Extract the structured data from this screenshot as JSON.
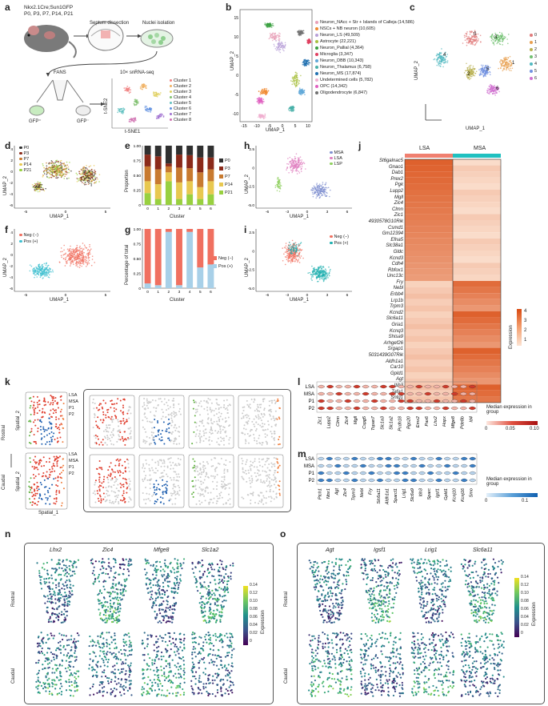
{
  "panel_labels": [
    "a",
    "b",
    "c",
    "d",
    "e",
    "f",
    "g",
    "h",
    "i",
    "j",
    "k",
    "l",
    "m",
    "n",
    "o"
  ],
  "a": {
    "mouse_text": [
      "Nkx2.1Cre;Sun1GFP",
      "P0, P3, P7, P14, P21"
    ],
    "steps": [
      "Septum dissection",
      "Nuclei isolation"
    ],
    "fans": "FANS",
    "gfp_pos": "GFP⁺",
    "gfp_neg": "GFP⁻",
    "seq": "10× snRNA-seq",
    "tsne_x": "t-SNE1",
    "tsne_y": "t-SNE2",
    "clusters": [
      "Cluster 1",
      "Cluster 2",
      "Cluster 3",
      "Cluster 4",
      "Cluster 5",
      "Cluster 6",
      "Cluster 7",
      "Cluster 8"
    ]
  },
  "b": {
    "xlabel": "UMAP_1",
    "ylabel": "UMAP_2",
    "xticks": [
      "-15",
      "-10",
      "-5",
      "0",
      "5",
      "10"
    ],
    "yticks": [
      "-10",
      "-5",
      "0",
      "5",
      "10",
      "15"
    ],
    "legend": [
      {
        "label": "Neuron_NAcc + Str + Islands of Calleja (14,586)",
        "color": "#e8a0b8"
      },
      {
        "label": "NSCs + NB neuron (10,605)",
        "color": "#f08a30"
      },
      {
        "label": "Neuron_LS (49,509)",
        "color": "#b8a0d8"
      },
      {
        "label": "Astrocyte (22,221)",
        "color": "#a8c040"
      },
      {
        "label": "Neuron_Pallial (4,364)",
        "color": "#3aa040"
      },
      {
        "label": "Microglia (3,347)",
        "color": "#e04060"
      },
      {
        "label": "Neuron_DBB (10,343)",
        "color": "#60a8d8"
      },
      {
        "label": "Neuron_Thalamus (6,758)",
        "color": "#48b0a8"
      },
      {
        "label": "Neuron_MS (17,874)",
        "color": "#2070b0"
      },
      {
        "label": "Undetermined cells (5,782)",
        "color": "#f0b0d0"
      },
      {
        "label": "OPC (14,342)",
        "color": "#e060c0"
      },
      {
        "label": "Oligodendrocyte (6,847)",
        "color": "#707070"
      }
    ]
  },
  "c": {
    "xlabel": "UMAP_1",
    "ylabel": "UMAP_2",
    "legend": [
      {
        "label": "0",
        "color": "#e07a7a"
      },
      {
        "label": "1",
        "color": "#e8a050"
      },
      {
        "label": "2",
        "color": "#b8b050"
      },
      {
        "label": "3",
        "color": "#70c070"
      },
      {
        "label": "4",
        "color": "#50b8c0"
      },
      {
        "label": "5",
        "color": "#7090e0"
      },
      {
        "label": "6",
        "color": "#d070d0"
      }
    ],
    "cluster_numbers": [
      "0",
      "1",
      "2",
      "3",
      "4",
      "5",
      "6"
    ]
  },
  "d": {
    "xlabel": "UMAP_1",
    "ylabel": "UMAP_2",
    "xticks": [
      "-5",
      "0",
      "5"
    ],
    "yticks": [
      "-6",
      "-4",
      "-2",
      "0",
      "2",
      "4"
    ],
    "legend": [
      {
        "label": "P0",
        "color": "#303030"
      },
      {
        "label": "P3",
        "color": "#8b2a1a"
      },
      {
        "label": "P7",
        "color": "#c87a30"
      },
      {
        "label": "P14",
        "color": "#e8c850"
      },
      {
        "label": "P21",
        "color": "#98d040"
      }
    ]
  },
  "e": {
    "xlabel": "Cluster",
    "ylabel": "Proportion",
    "yticks": [
      "0",
      "0.25",
      "0.50",
      "0.75",
      "1.00"
    ]
  },
  "f": {
    "xlabel": "UMAP_1",
    "ylabel": "UMAP_2",
    "xticks": [
      "-5",
      "0",
      "5"
    ],
    "yticks": [
      "-6",
      "-4",
      "-2",
      "0",
      "2",
      "4"
    ],
    "legend": [
      {
        "label": "Neg (−)",
        "color": "#f07060"
      },
      {
        "label": "Pos (+)",
        "color": "#40c0d0"
      }
    ]
  },
  "g": {
    "xlabel": "Cluster",
    "ylabel": "Percentage of total",
    "yticks": [
      "0",
      "0.25",
      "0.50",
      "0.75",
      "1.00"
    ],
    "legend": [
      {
        "label": "Neg (−)",
        "color": "#f07060"
      },
      {
        "label": "Pos (+)",
        "color": "#a8d0e8"
      }
    ]
  },
  "h": {
    "xlabel": "UMAP_1",
    "ylabel": "UMAP_2",
    "xticks": [
      "-6",
      "-3",
      "0",
      "3",
      "6"
    ],
    "yticks": [
      "-5.0",
      "-2.5",
      "0",
      "2.5"
    ],
    "legend": [
      {
        "label": "MSA",
        "color": "#8090d0"
      },
      {
        "label": "LSA",
        "color": "#e080c0"
      },
      {
        "label": "LSP",
        "color": "#90d060"
      }
    ]
  },
  "i": {
    "xlabel": "UMAP_1",
    "ylabel": "UMAP_2",
    "xticks": [
      "-6",
      "-3",
      "0",
      "3",
      "6"
    ],
    "yticks": [
      "-5.0",
      "-2.5",
      "0",
      "2.5"
    ],
    "legend": [
      {
        "label": "Neg (−)",
        "color": "#f07060"
      },
      {
        "label": "Pos (+)",
        "color": "#20b0b0"
      }
    ]
  },
  "j": {
    "col_labels": [
      "LSA",
      "MSA"
    ],
    "col_colors": [
      "#f08070",
      "#20c0c0"
    ],
    "genes": [
      "St6galnac5",
      "Gnao1",
      "Dab1",
      "Prex2",
      "Pgk",
      "Lupp2",
      "Mgll",
      "Zic4",
      "Clmn",
      "Zic1",
      "4930578G10Rik",
      "Csmd1",
      "Gm12394",
      "Efna5",
      "Slc38a1",
      "Gldc",
      "Kcnd3",
      "Cdh4",
      "Rbfox1",
      "Unc13c",
      "Fry",
      "Nebl",
      "Erbb4",
      "Lrp1b",
      "Trpm3",
      "Kcnd2",
      "Slc6a11",
      "Gria1",
      "Kcnq3",
      "Shisa9",
      "Arhgef26",
      "Srgap1",
      "5031439G07Rik",
      "Aldh1a1",
      "Car10",
      "Gpld1",
      "Agt",
      "Itih3",
      "Tafa1",
      "Sntg1"
    ],
    "legend_title": "Expression",
    "legend_ticks": [
      "4",
      "3",
      "2",
      "1"
    ]
  },
  "k": {
    "rostral": "Rostral",
    "caudal": "Caudal",
    "xlabel": "Spatial_1",
    "ylabel": "Spatial_2",
    "legend": [
      {
        "label": "LSA",
        "color": "#e04030"
      },
      {
        "label": "MSA",
        "color": "#2060b0"
      },
      {
        "label": "P1",
        "color": "#60b040"
      },
      {
        "label": "P2",
        "color": "#f08040"
      }
    ]
  },
  "l": {
    "rows": [
      "LSA",
      "MSA",
      "P1",
      "P2"
    ],
    "genes": [
      "Zic1",
      "Lupp2",
      "Clmn",
      "Zic4",
      "Mgll",
      "Cspg5",
      "Tspan7",
      "Slc1a3",
      "Slc1a2",
      "Pcdh18",
      "Rgs20",
      "Emx2",
      "Pax6",
      "Lhx2",
      "Hopx",
      "Mfge8",
      "Pde8b",
      "Id4"
    ],
    "legend_title": "Median expression in group",
    "legend_ticks": [
      "0",
      "0.05",
      "0.10"
    ]
  },
  "m": {
    "rows": [
      "LSA",
      "MSA",
      "P1",
      "P2"
    ],
    "genes": [
      "Ptch1",
      "Ntsr1",
      "Agt",
      "Zic4",
      "Trpm3",
      "Nebl",
      "Fry",
      "Slc6a11",
      "Aldh1a1",
      "Sparcl1",
      "Lrig1",
      "Slc6a9",
      "Itih3",
      "Sparc",
      "Igsf1",
      "Gpld1",
      "Kcnj10",
      "Kcnj16",
      "Smo"
    ],
    "legend_title": "Median expression in group",
    "legend_ticks": [
      "0",
      "0.1"
    ]
  },
  "n": {
    "genes": [
      "Lhx2",
      "Zic4",
      "Mfge8",
      "Slc1a2"
    ],
    "rostral": "Rostral",
    "caudal": "Caudal",
    "legend_title": "Expression",
    "legend_ticks": [
      "0.14",
      "0.12",
      "0.10",
      "0.08",
      "0.06",
      "0.04",
      "0.02",
      "0"
    ]
  },
  "o": {
    "genes": [
      "Agt",
      "Igsf1",
      "Lrig1",
      "Slc6a11"
    ],
    "rostral": "Rostral",
    "caudal": "Caudal",
    "legend_title": "Expression",
    "legend_ticks": [
      "0.14",
      "0.12",
      "0.10",
      "0.08",
      "0.06",
      "0.04",
      "0.02",
      "0"
    ]
  },
  "chart_data": [
    {
      "type": "bar",
      "panel": "e",
      "stacked": true,
      "categories": [
        "0",
        "1",
        "2",
        "3",
        "4",
        "5",
        "6"
      ],
      "series": [
        {
          "name": "P21",
          "values": [
            0.2,
            0.1,
            0.4,
            0.1,
            0.18,
            0.1,
            0.18
          ],
          "color": "#98d040"
        },
        {
          "name": "P14",
          "values": [
            0.2,
            0.25,
            0.15,
            0.28,
            0.22,
            0.2,
            0.22
          ],
          "color": "#e8c850"
        },
        {
          "name": "P7",
          "values": [
            0.25,
            0.25,
            0.1,
            0.25,
            0.22,
            0.25,
            0.2
          ],
          "color": "#c87a30"
        },
        {
          "name": "P3",
          "values": [
            0.2,
            0.22,
            0.05,
            0.22,
            0.22,
            0.25,
            0.2
          ],
          "color": "#8b2a1a"
        },
        {
          "name": "P0",
          "values": [
            0.15,
            0.18,
            0.3,
            0.15,
            0.16,
            0.2,
            0.2
          ],
          "color": "#303030"
        }
      ],
      "xlabel": "Cluster",
      "ylabel": "Proportion",
      "ylim": [
        0,
        1
      ]
    },
    {
      "type": "bar",
      "panel": "g",
      "stacked": true,
      "categories": [
        "0",
        "1",
        "2",
        "3",
        "4",
        "5",
        "6"
      ],
      "series": [
        {
          "name": "Pos (+)",
          "values": [
            0.08,
            0.05,
            0.95,
            0.05,
            0.95,
            0.35,
            0.4
          ],
          "color": "#a8d0e8"
        },
        {
          "name": "Neg (−)",
          "values": [
            0.92,
            0.95,
            0.05,
            0.95,
            0.05,
            0.65,
            0.6
          ],
          "color": "#f07060"
        }
      ],
      "xlabel": "Cluster",
      "ylabel": "Percentage of total",
      "ylim": [
        0,
        1
      ]
    }
  ]
}
